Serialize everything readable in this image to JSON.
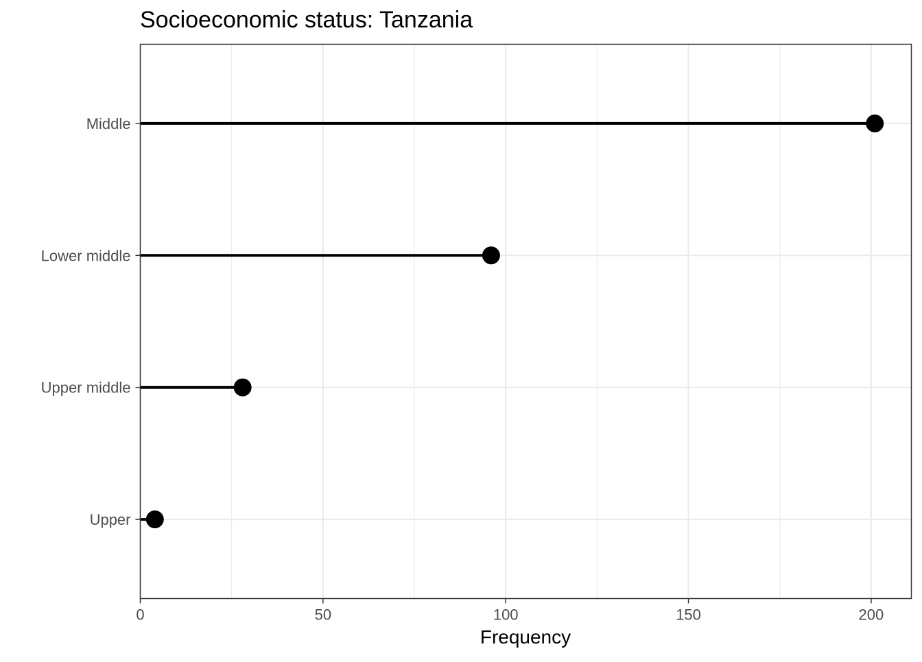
{
  "chart_data": {
    "type": "lollipop",
    "title": "Socioeconomic status: Tanzania",
    "xlabel": "Frequency",
    "ylabel": "",
    "categories": [
      "Middle",
      "Lower middle",
      "Upper middle",
      "Upper"
    ],
    "values": [
      201,
      96,
      28,
      4
    ],
    "xlim": [
      0,
      211
    ],
    "x_major_ticks": [
      0,
      50,
      100,
      150,
      200
    ],
    "x_tick_labels": [
      "0",
      "50",
      "100",
      "150",
      "200"
    ],
    "x_minor_ticks": [
      25,
      75,
      125,
      175
    ],
    "grid": true,
    "legend": "none",
    "colors": {
      "mark": "#000000",
      "grid": "#ebebeb",
      "panel_border": "#333333",
      "tick_text": "#4d4d4d"
    }
  }
}
